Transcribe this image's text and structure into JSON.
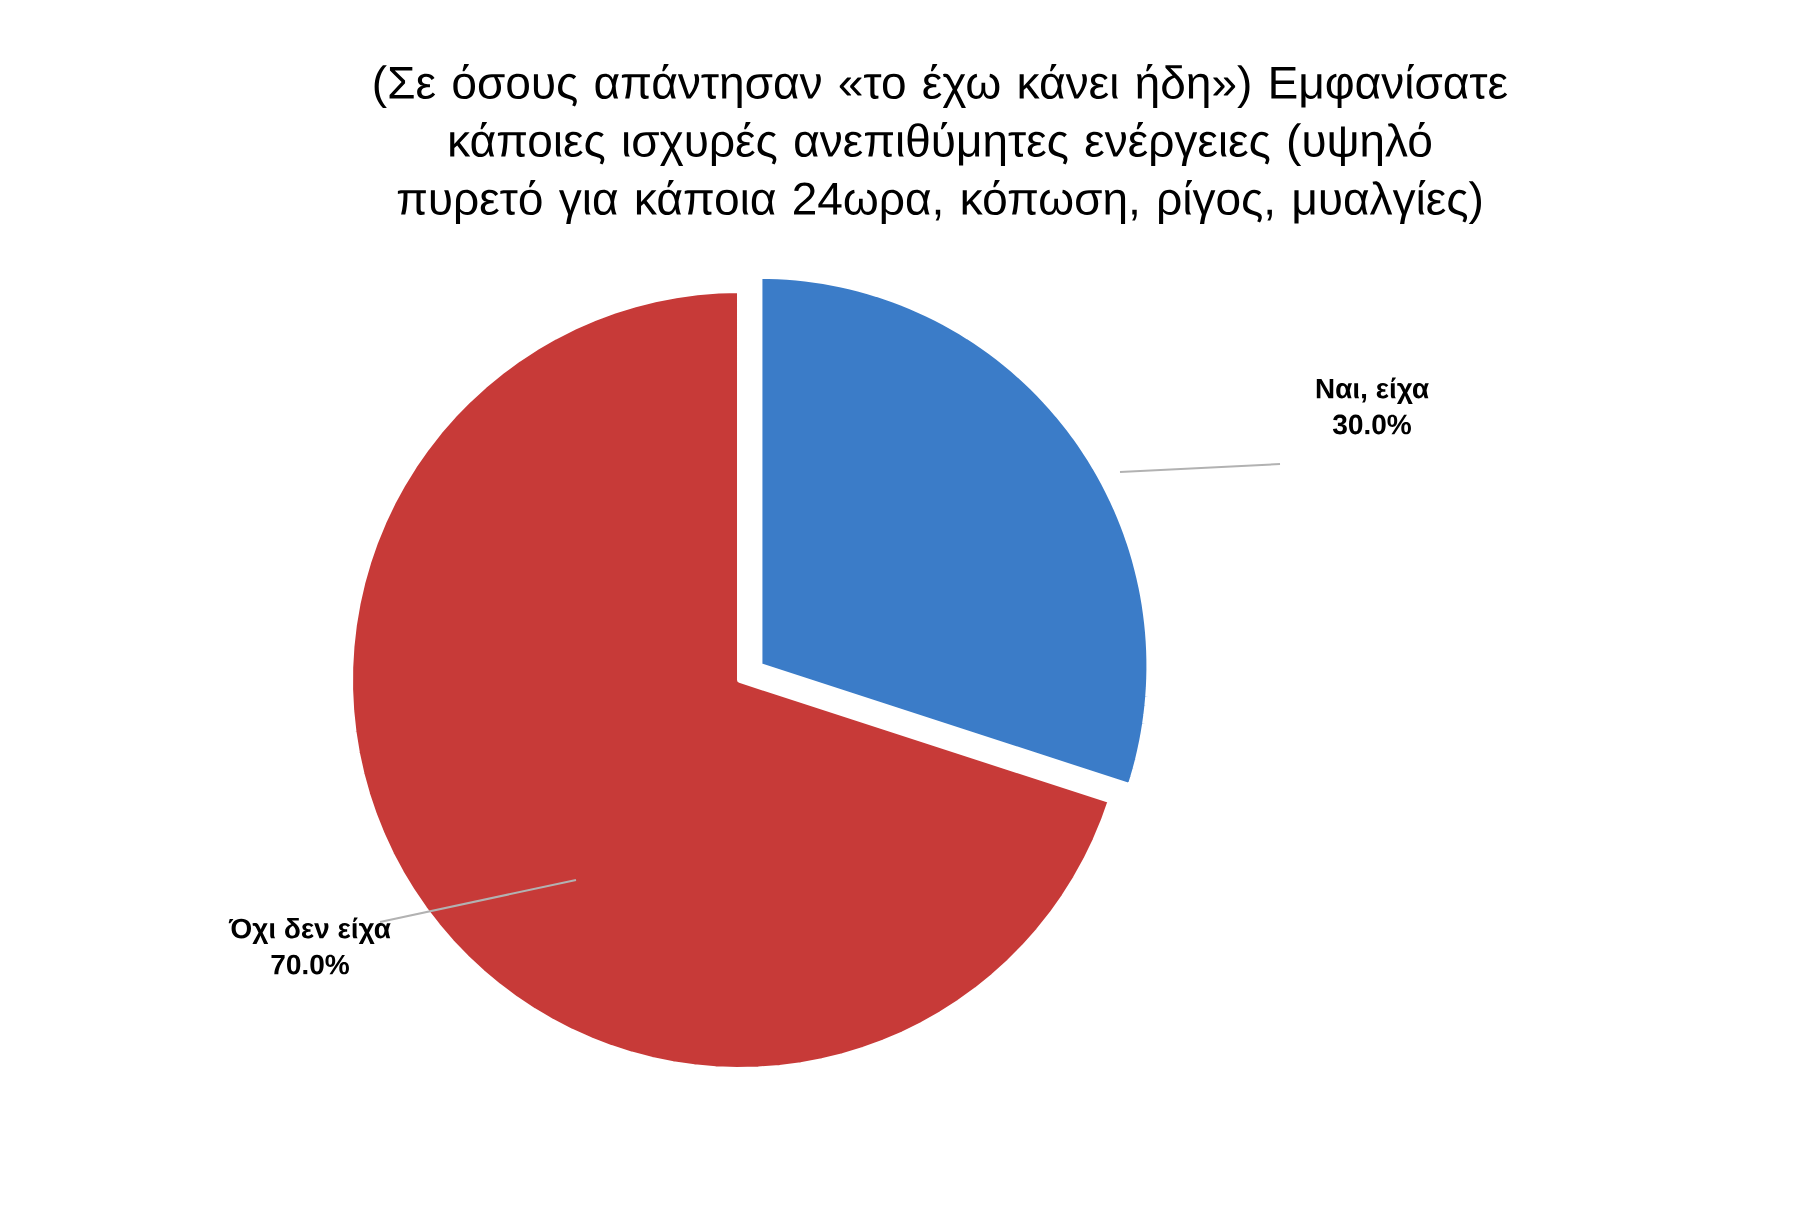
{
  "chart_data": {
    "type": "pie",
    "title": "(Σε όσους απάντησαν «το έχω κάνει ήδη») Εμφανίσατε κάποιες ισχυρές ανεπιθύμητες ενέργειες (υψηλό πυρετό για κάποια 24ωρα, κόπωση, ρίγος, μυαλγίες)",
    "categories": [
      "Ναι, είχα",
      "Όχι δεν είχα"
    ],
    "values": [
      30,
      70
    ],
    "value_labels": [
      "30.0%",
      "70.0%"
    ],
    "colors": [
      "#3b7cc8",
      "#c73a38"
    ]
  }
}
